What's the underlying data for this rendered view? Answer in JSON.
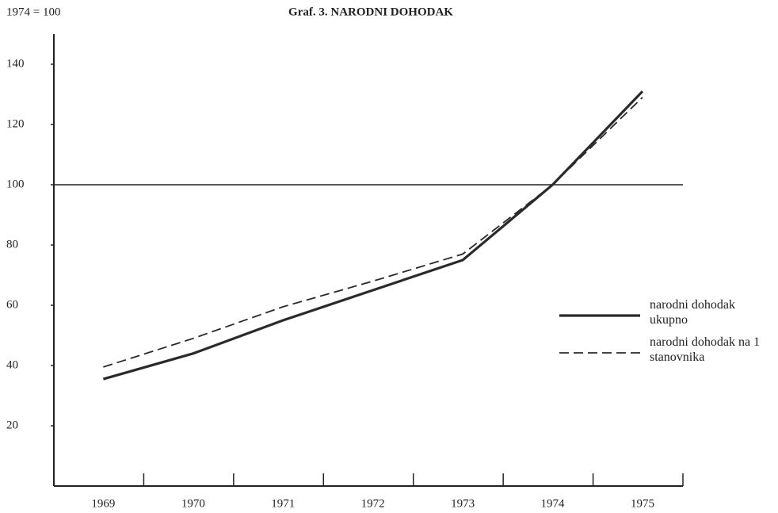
{
  "chart_data": {
    "type": "line",
    "title": "Graf. 3. NARODNI DOHODAK",
    "annotation": "1974 = 100",
    "categories": [
      "1969",
      "1970",
      "1971",
      "1972",
      "1973",
      "1974",
      "1975"
    ],
    "series": [
      {
        "name": "narodni dohodak ukupno",
        "color": "#2a2a2a",
        "dash": "solid",
        "values": [
          35.5,
          44,
          55,
          65,
          75,
          100,
          131
        ]
      },
      {
        "name": "narodni dohodak na 1 stanovnika",
        "color": "#2a2a2a",
        "dash": "dashed",
        "values": [
          39.5,
          49,
          59.5,
          68,
          77,
          100,
          129
        ]
      }
    ],
    "reference_line": 100,
    "ylim": [
      0,
      150
    ],
    "yticks": [
      20,
      40,
      60,
      80,
      100,
      120,
      140
    ],
    "grid": false,
    "legend": "right"
  }
}
